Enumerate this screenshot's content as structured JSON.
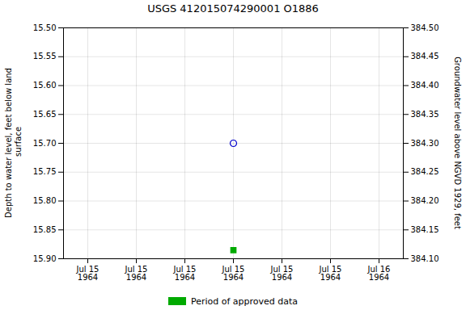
{
  "chart_data": {
    "type": "scatter",
    "title": "USGS 412015074290001 O1886",
    "ylabel": "Depth to water level, feet below land\n surface",
    "y2label": "Groundwater level above NGVD 1929, feet",
    "categories": [
      "Jul 15\n1964",
      "Jul 15\n1964",
      "Jul 15\n1964",
      "Jul 15\n1964",
      "Jul 15\n1964",
      "Jul 15\n1964",
      "Jul 16\n1964"
    ],
    "series": [
      {
        "values": [
          null,
          null,
          null,
          15.7,
          null,
          null,
          null
        ],
        "color": "#0000cc",
        "marker": "circle_open"
      },
      {
        "name": "Period of approved data",
        "values": [
          null,
          null,
          null,
          15.885,
          null,
          null,
          null
        ],
        "color": "#00aa00",
        "marker": "square"
      }
    ],
    "ylim": [
      15.9,
      15.5
    ],
    "yticks": [
      {
        "value": 15.5,
        "label": "15.50"
      },
      15.55,
      {
        "value": 15.6,
        "label": "15.60"
      },
      15.65,
      {
        "value": 15.7,
        "label": "15.70"
      },
      15.75,
      {
        "value": 15.8,
        "label": "15.80"
      },
      15.85,
      {
        "value": 15.9,
        "label": "15.90"
      }
    ],
    "y2lim": [
      384.1,
      384.5
    ],
    "y2ticks": [
      {
        "value": 384.5,
        "label": "384.50"
      },
      384.45,
      {
        "value": 384.4,
        "label": "384.40"
      },
      384.35,
      {
        "value": 384.3,
        "label": "384.30"
      },
      384.25,
      {
        "value": 384.2,
        "label": "384.20"
      },
      384.15,
      {
        "value": 384.1,
        "label": "384.10"
      }
    ],
    "grid": true,
    "legend": "bottom"
  }
}
